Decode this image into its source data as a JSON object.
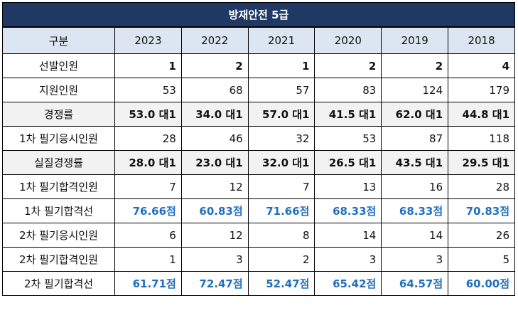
{
  "title": "방재안전 5급",
  "header": {
    "label": "구분",
    "years": [
      "2023",
      "2022",
      "2021",
      "2020",
      "2019",
      "2018"
    ]
  },
  "rows": [
    {
      "key": "selected",
      "label": "선발인원",
      "style": "bold",
      "shade": false,
      "values": [
        "1",
        "2",
        "1",
        "2",
        "2",
        "4"
      ]
    },
    {
      "key": "applicants",
      "label": "지원인원",
      "style": "plain",
      "shade": false,
      "values": [
        "53",
        "68",
        "57",
        "83",
        "124",
        "179"
      ]
    },
    {
      "key": "competition",
      "label": "경쟁률",
      "style": "bold",
      "shade": true,
      "values": [
        "53.0 대1",
        "34.0 대1",
        "57.0 대1",
        "41.5 대1",
        "62.0 대1",
        "44.8 대1"
      ]
    },
    {
      "key": "written1-takers",
      "label": "1차 필기응시인원",
      "style": "plain",
      "shade": false,
      "values": [
        "28",
        "46",
        "32",
        "53",
        "87",
        "118"
      ]
    },
    {
      "key": "real-competition",
      "label": "실질경쟁률",
      "style": "bold",
      "shade": true,
      "values": [
        "28.0 대1",
        "23.0 대1",
        "32.0 대1",
        "26.5 대1",
        "43.5 대1",
        "29.5 대1"
      ]
    },
    {
      "key": "written1-passed",
      "label": "1차 필기합격인원",
      "style": "plain",
      "shade": false,
      "values": [
        "7",
        "12",
        "7",
        "13",
        "16",
        "28"
      ]
    },
    {
      "key": "written1-cutoff",
      "label": "1차 필기합격선",
      "style": "blue",
      "shade": false,
      "values": [
        "76.66점",
        "60.83점",
        "71.66점",
        "68.33점",
        "68.33점",
        "70.83점"
      ]
    },
    {
      "key": "written2-takers",
      "label": "2차 필기응시인원",
      "style": "plain",
      "shade": false,
      "values": [
        "6",
        "12",
        "8",
        "14",
        "14",
        "26"
      ]
    },
    {
      "key": "written2-passed",
      "label": "2차 필기합격인원",
      "style": "plain",
      "shade": false,
      "values": [
        "1",
        "3",
        "2",
        "3",
        "3",
        "5"
      ]
    },
    {
      "key": "written2-cutoff",
      "label": "2차 필기합격선",
      "style": "blue",
      "shade": false,
      "values": [
        "61.71점",
        "72.47점",
        "52.47점",
        "65.42점",
        "64.57점",
        "60.00점"
      ]
    }
  ]
}
